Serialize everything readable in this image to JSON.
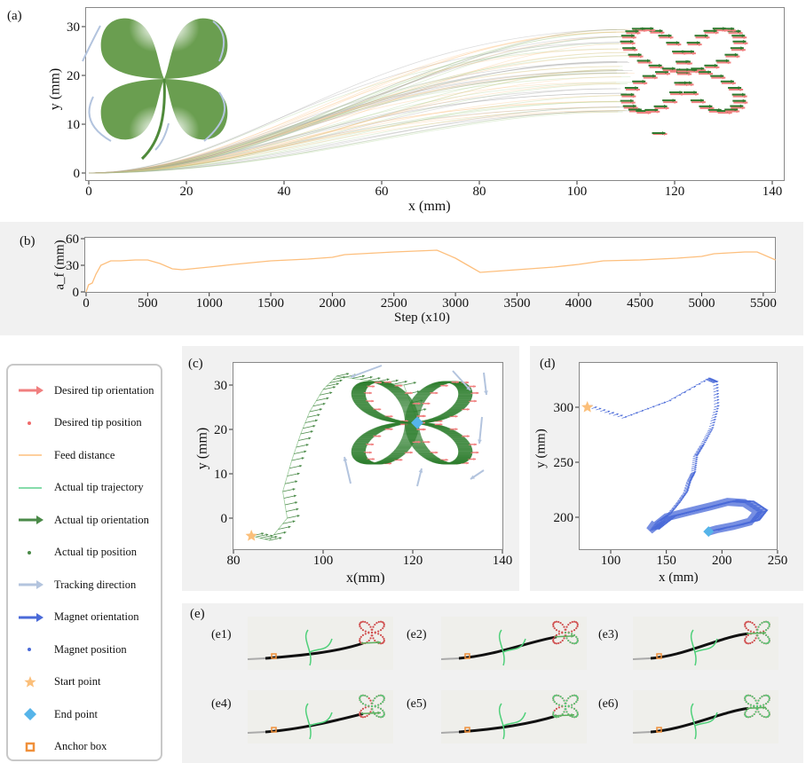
{
  "panels": {
    "a": "(a)",
    "b": "(b)",
    "c": "(c)",
    "d": "(d)",
    "e": "(e)"
  },
  "photos": [
    "(e1)",
    "(e2)",
    "(e3)",
    "(e4)",
    "(e5)",
    "(e6)"
  ],
  "colors": {
    "desired_orientation": "#f07f7f",
    "desired_position": "#f06a6a",
    "feed_distance": "#fdbf7d",
    "actual_trajectory": "#5fd08d",
    "actual_orientation": "#3c8a3c",
    "actual_position": "#3c8a3c",
    "tracking_direction": "#b3c4de",
    "magnet_orientation": "#4a6ad8",
    "magnet_position": "#4a6ad8",
    "start_point": "#fbbf7a",
    "end_point": "#56b4e9",
    "anchor_box": "#f0903a",
    "clover_leaf": "#6a9e50",
    "panel_background": "#f1f1f1"
  },
  "legend": {
    "items": [
      {
        "label": "Desired tip orientation",
        "icon": "arrow",
        "color": "#f07f7f"
      },
      {
        "label": "Desired tip position",
        "icon": "dot",
        "color": "#f06a6a"
      },
      {
        "label": "Feed distance",
        "icon": "line",
        "color": "#fdbf7d"
      },
      {
        "label": "Actual tip trajectory",
        "icon": "line",
        "color": "#5fd08d"
      },
      {
        "label": "Actual tip orientation",
        "icon": "arrow",
        "color": "#4a8a48"
      },
      {
        "label": "Actual tip position",
        "icon": "dot",
        "color": "#4a8a48"
      },
      {
        "label": "Tracking direction",
        "icon": "arrow",
        "color": "#b3c4de"
      },
      {
        "label": "Magnet orientation",
        "icon": "arrow",
        "color": "#4a6ad8"
      },
      {
        "label": "Magnet position",
        "icon": "dot",
        "color": "#4a6ad8"
      },
      {
        "label": "Start point",
        "icon": "star",
        "color": "#fbbf7a"
      },
      {
        "label": "End point",
        "icon": "diamond",
        "color": "#56b4e9"
      },
      {
        "label": "Anchor box",
        "icon": "square",
        "color": "#f0903a"
      }
    ]
  },
  "chart_data": [
    {
      "id": "a",
      "type": "line",
      "xlabel": "x (mm)",
      "ylabel": "y (mm)",
      "xlim": [
        0,
        140
      ],
      "ylim": [
        0,
        33
      ],
      "xticks": [
        "0",
        "20",
        "40",
        "60",
        "80",
        "100",
        "120",
        "140"
      ],
      "yticks": [
        "0",
        "10",
        "20",
        "30"
      ],
      "grid": false,
      "origin": [
        0,
        0
      ],
      "clover_region": {
        "x": [
          108,
          136
        ],
        "y": [
          8,
          32
        ]
      }
    },
    {
      "id": "b",
      "type": "line",
      "xlabel": "Step (x10)",
      "ylabel": "a_f (mm)",
      "ylabel_italic": "a",
      "ylabel_sub": "f",
      "ylabel_unit": " (mm)",
      "xlim": [
        0,
        5600
      ],
      "ylim": [
        0,
        60
      ],
      "xticks": [
        "0",
        "500",
        "1000",
        "1500",
        "2000",
        "2500",
        "3000",
        "3500",
        "4000",
        "4500",
        "5000",
        "5500"
      ],
      "yticks": [
        "0",
        "30",
        "60"
      ],
      "grid": false,
      "series": [
        {
          "x": [
            0,
            20,
            50,
            80,
            120,
            200,
            280,
            400,
            500,
            600,
            700,
            780,
            1000,
            1200,
            1500,
            1800,
            2000,
            2100,
            2500,
            2850,
            3000,
            3100,
            3200,
            3500,
            3800,
            4000,
            4200,
            4500,
            4800,
            5000,
            5100,
            5350,
            5450,
            5600
          ],
          "y": [
            0,
            8,
            10,
            20,
            30,
            35,
            35,
            36,
            36,
            32,
            26,
            25,
            28,
            31,
            35,
            37,
            39,
            42,
            45,
            47,
            38,
            30,
            22,
            25,
            28,
            31,
            35,
            36,
            38,
            40,
            43,
            45,
            45,
            36
          ]
        }
      ]
    },
    {
      "id": "c",
      "type": "scatter",
      "xlabel": "x(mm)",
      "ylabel": "y (mm)",
      "xlim": [
        80,
        140
      ],
      "ylim": [
        -6,
        35
      ],
      "xticks": [
        "80",
        "100",
        "120",
        "140"
      ],
      "yticks": [
        "0",
        "10",
        "20",
        "30"
      ],
      "grid": false,
      "start_point": [
        84,
        -4
      ],
      "end_point": [
        121,
        21.5
      ],
      "approach_path": {
        "x": [
          84,
          88,
          92,
          91,
          93,
          95,
          97,
          100,
          103,
          110,
          118,
          121
        ],
        "y": [
          -4,
          -5,
          0,
          6,
          13,
          19,
          24,
          29,
          32,
          31,
          30,
          22
        ]
      }
    },
    {
      "id": "d",
      "type": "scatter",
      "xlabel": "x (mm)",
      "ylabel": "y (mm)",
      "xlim": [
        70,
        250
      ],
      "ylim": [
        170,
        330
      ],
      "xticks": [
        "100",
        "150",
        "200",
        "250"
      ],
      "yticks": [
        "200",
        "250",
        "300"
      ],
      "grid": false,
      "start_point": [
        79,
        300
      ],
      "end_point": [
        188,
        187
      ],
      "path": {
        "x": [
          79,
          110,
          150,
          185,
          192,
          193,
          188,
          180,
          174,
          172,
          168,
          165,
          158,
          150,
          140,
          135,
          150,
          170,
          190,
          205,
          220,
          232,
          225,
          210,
          195,
          188
        ],
        "y": [
          300,
          290,
          305,
          325,
          322,
          300,
          280,
          265,
          255,
          240,
          232,
          222,
          212,
          202,
          195,
          188,
          200,
          205,
          210,
          214,
          213,
          205,
          196,
          192,
          189,
          187
        ]
      }
    }
  ]
}
